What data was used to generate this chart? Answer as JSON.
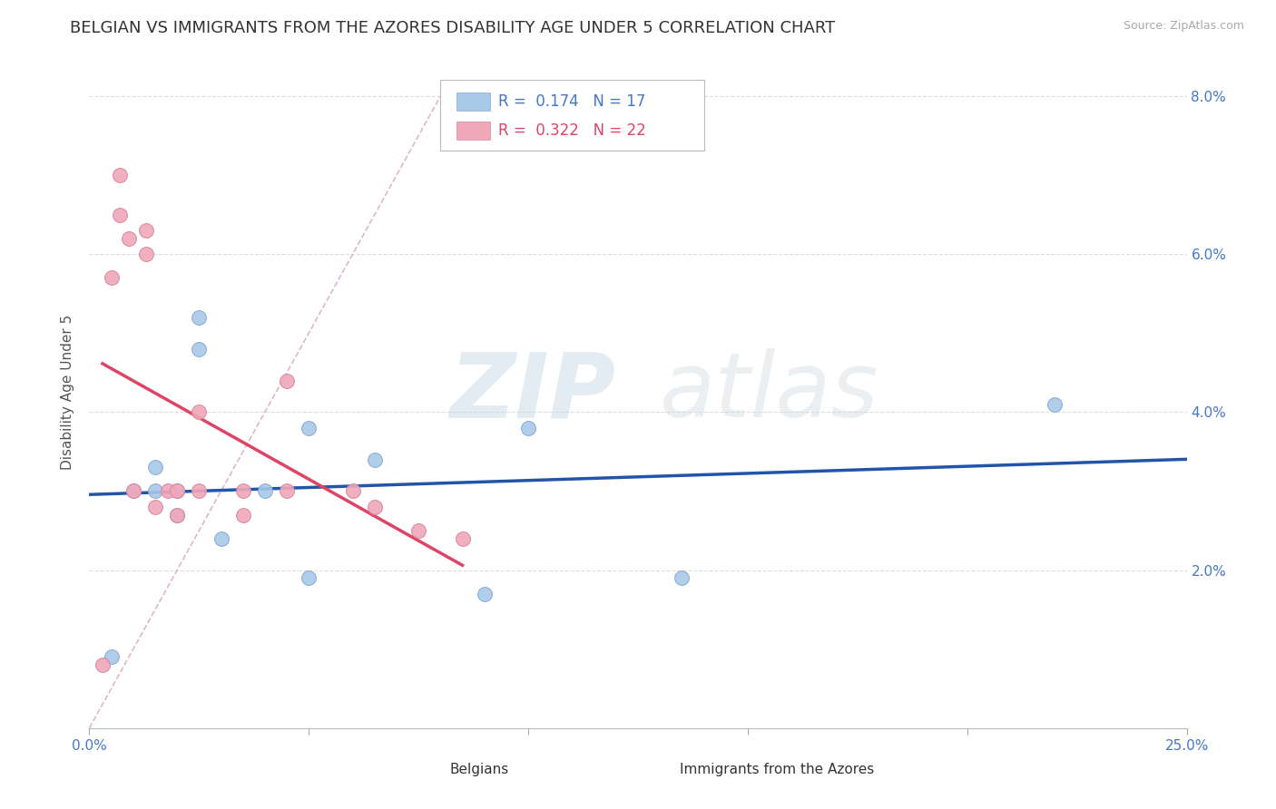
{
  "title": "BELGIAN VS IMMIGRANTS FROM THE AZORES DISABILITY AGE UNDER 5 CORRELATION CHART",
  "source": "Source: ZipAtlas.com",
  "ylabel": "Disability Age Under 5",
  "xlim": [
    0.0,
    0.25
  ],
  "ylim": [
    0.0,
    0.085
  ],
  "yticks": [
    0.0,
    0.02,
    0.04,
    0.06,
    0.08
  ],
  "ytick_labels": [
    "",
    "2.0%",
    "4.0%",
    "6.0%",
    "8.0%"
  ],
  "xticks": [
    0.0,
    0.05,
    0.1,
    0.15,
    0.2,
    0.25
  ],
  "xtick_labels": [
    "0.0%",
    "",
    "",
    "",
    "",
    "25.0%"
  ],
  "belgian_color": "#A8C8E8",
  "azores_color": "#F0A8B8",
  "belgian_line_color": "#2255AA",
  "azores_line_color": "#DD4466",
  "diagonal_color": "#E0B8C0",
  "r_belgian": "0.174",
  "n_belgian": "17",
  "r_azores": "0.322",
  "n_azores": "22",
  "belgian_scatter_x": [
    0.005,
    0.01,
    0.015,
    0.015,
    0.02,
    0.02,
    0.025,
    0.025,
    0.03,
    0.04,
    0.05,
    0.05,
    0.065,
    0.09,
    0.1,
    0.135,
    0.22
  ],
  "belgian_scatter_y": [
    0.009,
    0.03,
    0.03,
    0.033,
    0.027,
    0.03,
    0.048,
    0.052,
    0.024,
    0.03,
    0.019,
    0.038,
    0.034,
    0.017,
    0.038,
    0.019,
    0.041
  ],
  "azores_scatter_x": [
    0.003,
    0.005,
    0.007,
    0.007,
    0.009,
    0.01,
    0.013,
    0.013,
    0.015,
    0.018,
    0.02,
    0.02,
    0.025,
    0.025,
    0.035,
    0.035,
    0.045,
    0.045,
    0.06,
    0.065,
    0.075,
    0.085
  ],
  "azores_scatter_y": [
    0.008,
    0.057,
    0.065,
    0.07,
    0.062,
    0.03,
    0.06,
    0.063,
    0.028,
    0.03,
    0.027,
    0.03,
    0.04,
    0.03,
    0.027,
    0.03,
    0.044,
    0.03,
    0.03,
    0.028,
    0.025,
    0.024
  ],
  "watermark_zip": "ZIP",
  "watermark_atlas": "atlas",
  "title_fontsize": 13,
  "label_fontsize": 11,
  "tick_fontsize": 11,
  "legend_fontsize": 12,
  "bottom_legend_labels": [
    "Belgians",
    "Immigrants from the Azores"
  ]
}
